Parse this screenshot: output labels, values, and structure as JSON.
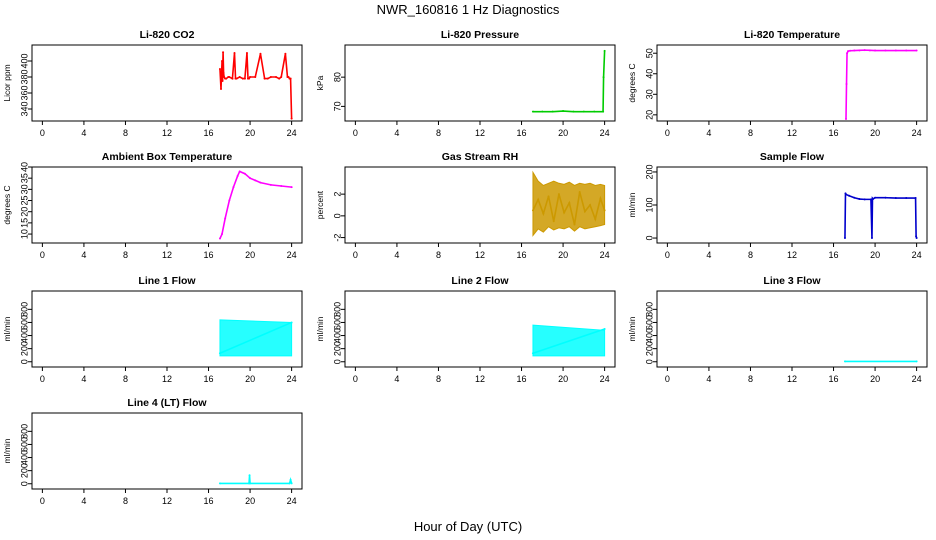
{
  "figure": {
    "title": "NWR_160816  1 Hz Diagnostics",
    "xlabel": "Hour of Day (UTC)"
  },
  "chart_data": [
    {
      "type": "line",
      "title": "Li-820 CO2",
      "ylabel": "Licor ppm",
      "color": "#ff0000",
      "xlim": [
        -1,
        25
      ],
      "xticks": [
        0,
        4,
        8,
        12,
        16,
        20,
        24
      ],
      "ylim": [
        325,
        420
      ],
      "yticks": [
        340,
        360,
        380,
        400
      ],
      "series": [
        {
          "name": "Li-820 CO2",
          "x": [
            17.1,
            17.2,
            17.3,
            17.35,
            17.4,
            17.45,
            17.5,
            17.6,
            17.7,
            17.9,
            18.0,
            18.3,
            18.5,
            18.6,
            18.7,
            19.0,
            19.3,
            19.5,
            19.7,
            19.8,
            19.9,
            20.0,
            20.5,
            21.0,
            21.4,
            21.7,
            22.0,
            22.5,
            22.8,
            23.0,
            23.4,
            23.6,
            23.7,
            23.8,
            23.9,
            24.0
          ],
          "y": [
            390,
            365,
            400,
            375,
            411,
            385,
            380,
            378,
            378,
            380,
            380,
            378,
            410,
            378,
            378,
            380,
            378,
            378,
            410,
            378,
            378,
            380,
            380,
            409,
            378,
            378,
            380,
            380,
            378,
            380,
            409,
            380,
            380,
            378,
            378,
            328
          ]
        }
      ]
    },
    {
      "type": "line",
      "title": "Li-820 Pressure",
      "ylabel": "kPa",
      "color": "#00cc00",
      "xlim": [
        -1,
        25
      ],
      "xticks": [
        0,
        4,
        8,
        12,
        16,
        20,
        24
      ],
      "ylim": [
        65,
        91
      ],
      "yticks": [
        70,
        80
      ],
      "series": [
        {
          "name": "Li-820 Pressure",
          "x": [
            17.1,
            18.0,
            19.0,
            20.0,
            21.0,
            22.0,
            23.0,
            23.85,
            23.9,
            24.0
          ],
          "y": [
            68.2,
            68.2,
            68.2,
            68.4,
            68.2,
            68.2,
            68.2,
            68.2,
            80,
            89
          ]
        }
      ]
    },
    {
      "type": "line",
      "title": "Li-820 Temperature",
      "ylabel": "degrees C",
      "color": "#ff00ff",
      "xlim": [
        -1,
        25
      ],
      "xticks": [
        0,
        4,
        8,
        12,
        16,
        20,
        24
      ],
      "ylim": [
        17,
        54
      ],
      "yticks": [
        20,
        30,
        40,
        50
      ],
      "series": [
        {
          "name": "Li-820 Temperature",
          "x": [
            17.2,
            17.25,
            17.3,
            17.4,
            17.6,
            18.0,
            18.5,
            19.0,
            19.5,
            20.0,
            21.0,
            22.0,
            23.0,
            24.0
          ],
          "y": [
            18,
            35,
            50,
            51,
            51.2,
            51.3,
            51.4,
            51.5,
            51.4,
            51.3,
            51.3,
            51.3,
            51.3,
            51.3
          ]
        }
      ]
    },
    {
      "type": "line",
      "title": "Ambient Box Temperature",
      "ylabel": "degrees C",
      "color": "#ff00ff",
      "xlim": [
        -1,
        25
      ],
      "xticks": [
        0,
        4,
        8,
        12,
        16,
        20,
        24
      ],
      "ylim": [
        6,
        40
      ],
      "yticks": [
        10,
        15,
        20,
        25,
        30,
        35,
        40
      ],
      "series": [
        {
          "name": "Ambient Box Temperature",
          "x": [
            17.1,
            17.3,
            17.6,
            18.0,
            18.4,
            18.8,
            19.0,
            19.5,
            20.0,
            20.5,
            21.0,
            22.0,
            23.0,
            24.0
          ],
          "y": [
            8,
            10,
            17,
            25,
            31,
            36,
            38,
            37,
            35,
            34,
            33,
            32,
            31.5,
            31
          ]
        }
      ]
    },
    {
      "type": "line",
      "title": "Gas Stream RH",
      "ylabel": "percent",
      "color": "#cc9900",
      "xlim": [
        -1,
        25
      ],
      "xticks": [
        0,
        4,
        8,
        12,
        16,
        20,
        24
      ],
      "ylim": [
        -2.5,
        4.5
      ],
      "yticks": [
        -2,
        0,
        2
      ],
      "series": [
        {
          "name": "Gas Stream RH",
          "x": [
            17.1,
            17.6,
            18.1,
            18.6,
            19.1,
            19.6,
            20.1,
            20.6,
            21.1,
            21.6,
            22.1,
            22.6,
            23.1,
            23.6,
            24.0
          ],
          "y": [
            0.5,
            1.5,
            0.2,
            1.8,
            -0.5,
            2.0,
            0.3,
            1.2,
            -0.8,
            2.2,
            0.4,
            1.0,
            -0.3,
            1.6,
            0.5
          ],
          "band": {
            "low": [
              -1.8,
              -1.2,
              -1.5,
              -1.0,
              -1.3,
              -1.1,
              -1.2,
              -1.0,
              -1.4,
              -1.0,
              -1.2,
              -1.1,
              -1.0,
              -0.9,
              -0.8
            ],
            "high": [
              4.0,
              3.2,
              2.8,
              3.0,
              3.2,
              3.0,
              2.9,
              3.1,
              2.8,
              3.0,
              2.9,
              3.0,
              2.8,
              2.9,
              2.8
            ]
          }
        }
      ]
    },
    {
      "type": "line",
      "title": "Sample Flow",
      "ylabel": "ml/min",
      "color": "#0000cc",
      "xlim": [
        -1,
        25
      ],
      "xticks": [
        0,
        4,
        8,
        12,
        16,
        20,
        24
      ],
      "ylim": [
        -15,
        215
      ],
      "yticks": [
        0,
        100,
        200
      ],
      "series": [
        {
          "name": "Sample Flow",
          "x": [
            17.1,
            17.15,
            17.2,
            17.5,
            18.0,
            18.5,
            19.0,
            19.6,
            19.7,
            19.75,
            19.8,
            20.0,
            21.0,
            22.0,
            23.0,
            23.9,
            23.95,
            24.0
          ],
          "y": [
            0,
            135,
            132,
            128,
            122,
            118,
            117,
            117,
            0,
            120,
            118,
            122,
            122,
            121,
            121,
            121,
            5,
            0
          ]
        }
      ]
    },
    {
      "type": "line",
      "title": "Line 1 Flow",
      "ylabel": "ml/min",
      "color": "#00ffff",
      "xlim": [
        -1,
        25
      ],
      "xticks": [
        0,
        4,
        8,
        12,
        16,
        20,
        24
      ],
      "ylim": [
        -80,
        1080
      ],
      "yticks": [
        0,
        200,
        400,
        600,
        800
      ],
      "series": [
        {
          "name": "Line 1 Flow",
          "x": [
            17.1,
            24.0
          ],
          "y": [
            130,
            600
          ],
          "band": {
            "low": [
              90,
              90
            ],
            "high": [
              640,
              600
            ]
          }
        }
      ]
    },
    {
      "type": "line",
      "title": "Line 2 Flow",
      "ylabel": "ml/min",
      "color": "#00ffff",
      "xlim": [
        -1,
        25
      ],
      "xticks": [
        0,
        4,
        8,
        12,
        16,
        20,
        24
      ],
      "ylim": [
        -80,
        1080
      ],
      "yticks": [
        0,
        200,
        400,
        600,
        800
      ],
      "series": [
        {
          "name": "Line 2 Flow",
          "x": [
            17.1,
            24.0
          ],
          "y": [
            130,
            500
          ],
          "band": {
            "low": [
              90,
              90
            ],
            "high": [
              560,
              480
            ]
          }
        }
      ]
    },
    {
      "type": "line",
      "title": "Line 3 Flow",
      "ylabel": "ml/min",
      "color": "#00ffff",
      "xlim": [
        -1,
        25
      ],
      "xticks": [
        0,
        4,
        8,
        12,
        16,
        20,
        24
      ],
      "ylim": [
        -80,
        1080
      ],
      "yticks": [
        0,
        200,
        400,
        600,
        800
      ],
      "series": [
        {
          "name": "Line 3 Flow",
          "x": [
            17.1,
            24.0
          ],
          "y": [
            5,
            5
          ]
        }
      ]
    },
    {
      "type": "line",
      "title": "Line 4 (LT) Flow",
      "ylabel": "ml/min",
      "color": "#00ffff",
      "xlim": [
        -1,
        25
      ],
      "xticks": [
        0,
        4,
        8,
        12,
        16,
        20,
        24
      ],
      "ylim": [
        -80,
        1080
      ],
      "yticks": [
        0,
        200,
        400,
        600,
        800
      ],
      "series": [
        {
          "name": "Line 4 (LT) Flow",
          "x": [
            17.1,
            19.9,
            19.95,
            20.0,
            23.8,
            23.9,
            24.0
          ],
          "y": [
            5,
            5,
            130,
            5,
            5,
            60,
            5
          ]
        }
      ]
    }
  ]
}
